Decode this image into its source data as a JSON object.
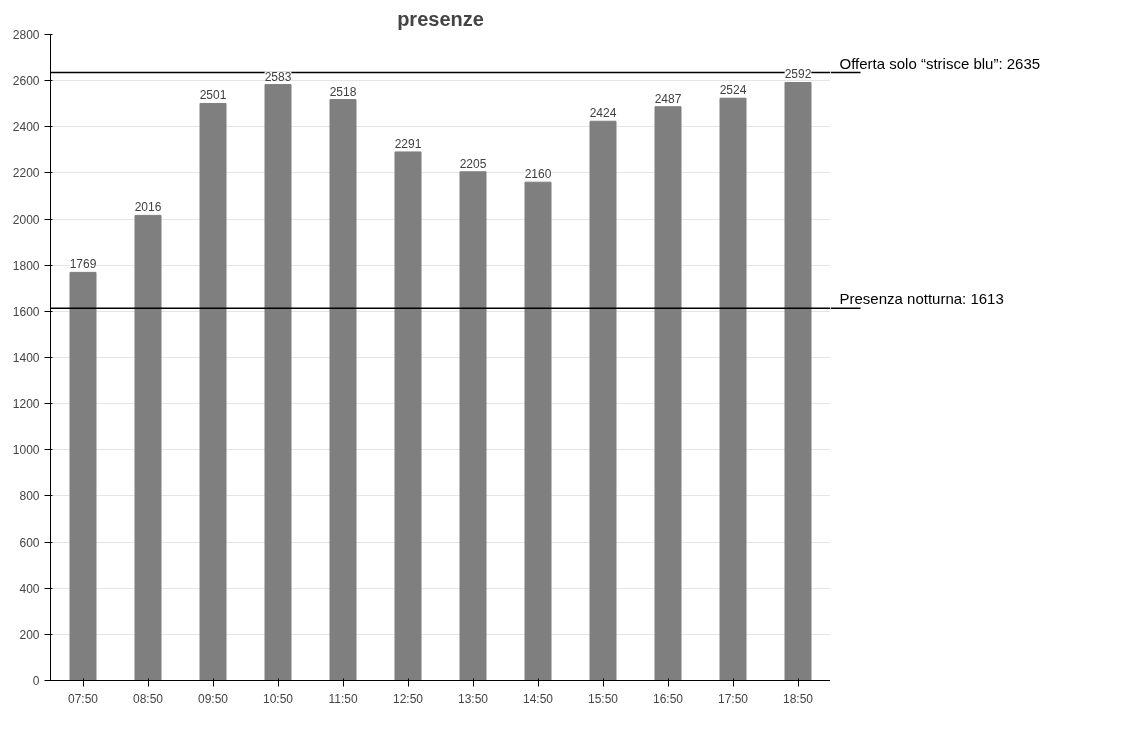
{
  "chart_data": {
    "type": "bar",
    "title": "presenze",
    "categories": [
      "07:50",
      "08:50",
      "09:50",
      "10:50",
      "11:50",
      "12:50",
      "13:50",
      "14:50",
      "15:50",
      "16:50",
      "17:50",
      "18:50"
    ],
    "values": [
      1769,
      2016,
      2501,
      2583,
      2518,
      2291,
      2205,
      2160,
      2424,
      2487,
      2524,
      2592
    ],
    "color": "#7f7f7f",
    "ylim": [
      0,
      2800
    ],
    "yticks": [
      0,
      200,
      400,
      600,
      800,
      1000,
      1200,
      1400,
      1600,
      1800,
      2000,
      2200,
      2400,
      2600,
      2800
    ],
    "grid": "y",
    "data_labels": true,
    "ref_lines": [
      {
        "axis": "y",
        "value": 2635,
        "label": "Offerta solo “strisce blu”: 2635",
        "color": "#000000"
      },
      {
        "axis": "y",
        "value": 1613,
        "label": "Presenza notturna: 1613",
        "color": "#000000"
      }
    ]
  }
}
